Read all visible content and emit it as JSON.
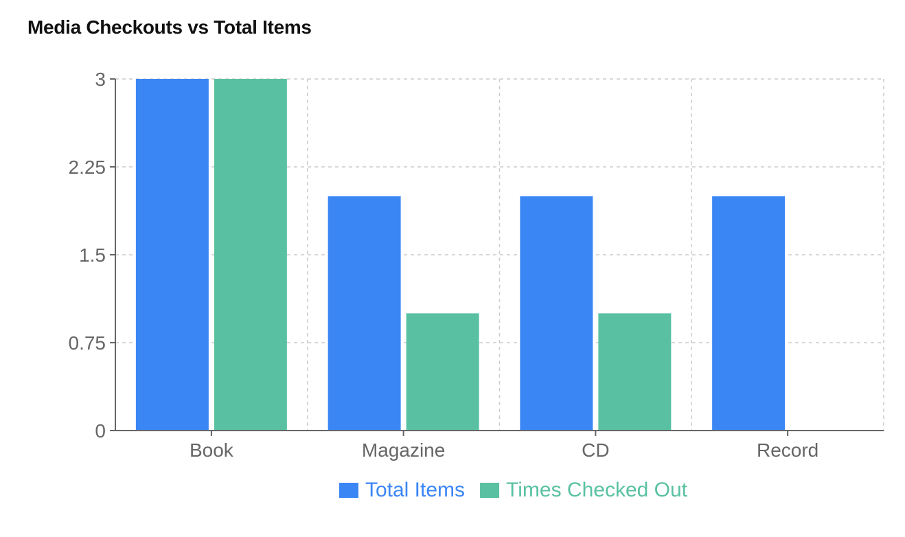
{
  "chart_data": {
    "type": "bar",
    "title": "Media Checkouts vs Total Items",
    "categories": [
      "Book",
      "Magazine",
      "CD",
      "Record"
    ],
    "series": [
      {
        "name": "Total Items",
        "values": [
          3,
          2,
          2,
          2
        ],
        "color": "#3b86f5"
      },
      {
        "name": "Times Checked Out",
        "values": [
          3,
          1,
          1,
          0
        ],
        "color": "#59c1a2"
      }
    ],
    "ylim": [
      0,
      3
    ],
    "yticks": [
      0,
      0.75,
      1.5,
      2.25,
      3
    ],
    "ytick_labels": [
      "0",
      "0.75",
      "1.5",
      "2.25",
      "3"
    ],
    "xlabel": "",
    "ylabel": "",
    "grid": true,
    "legend_position": "bottom-center"
  }
}
